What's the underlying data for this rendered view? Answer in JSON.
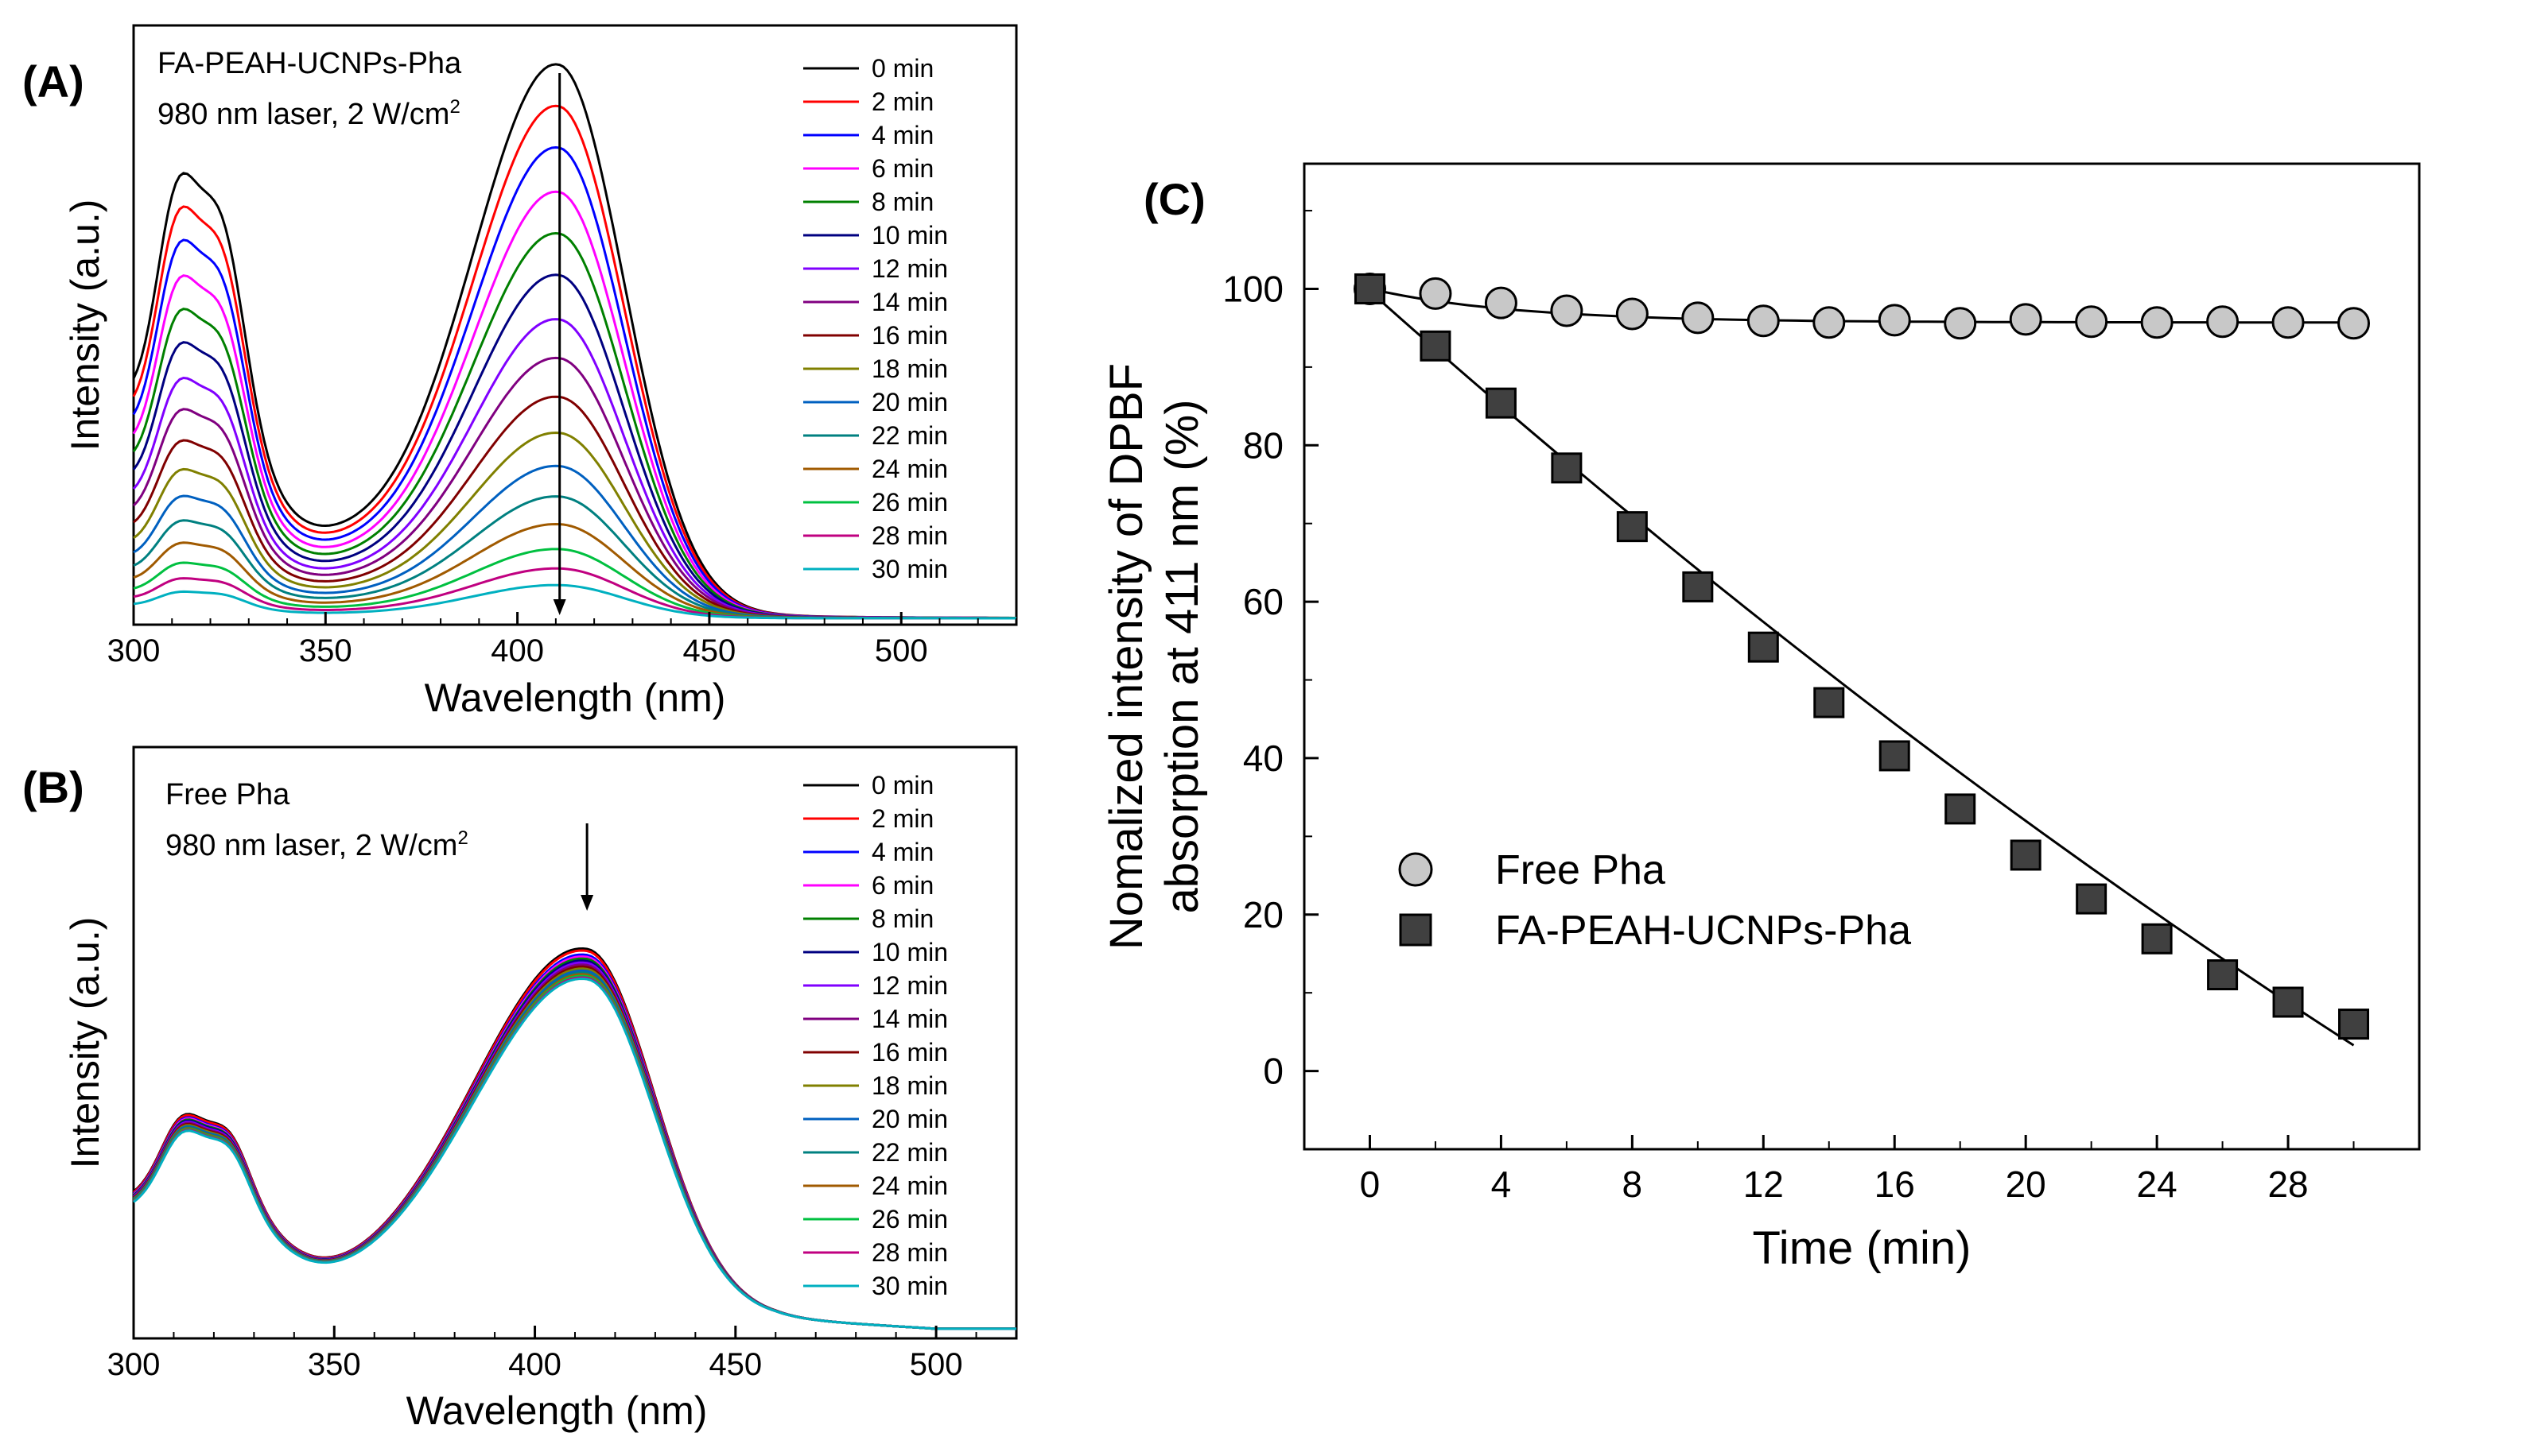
{
  "chart_data": [
    {
      "panel": "(A)",
      "type": "line",
      "title": "FA-PEAH-UCNPs-Pha",
      "condition": "980 nm laser, 2 W/cm",
      "condition_sup": "2",
      "xlabel": "Wavelength (nm)",
      "ylabel": "Intensity (a.u.)",
      "xlim": [
        300,
        530
      ],
      "xticks": [
        "300",
        "350",
        "400",
        "450",
        "500"
      ],
      "ylim": [
        0,
        1
      ],
      "peak_nm": 411,
      "legend": [
        "0 min",
        "2 min",
        "4 min",
        "6 min",
        "8 min",
        "10 min",
        "12 min",
        "14 min",
        "16 min",
        "18 min",
        "20 min",
        "22 min",
        "24 min",
        "26 min",
        "28 min",
        "30 min"
      ],
      "colors": [
        "#000000",
        "#ff0000",
        "#0000ff",
        "#ff00ff",
        "#008000",
        "#000080",
        "#8000ff",
        "#800080",
        "#800000",
        "#808000",
        "#0060c0",
        "#008080",
        "#a05a00",
        "#00c040",
        "#c00080",
        "#00b0c0"
      ],
      "peak_values": [
        1.0,
        0.925,
        0.85,
        0.77,
        0.695,
        0.62,
        0.54,
        0.47,
        0.4,
        0.335,
        0.275,
        0.22,
        0.17,
        0.125,
        0.09,
        0.06
      ]
    },
    {
      "panel": "(B)",
      "type": "line",
      "title": "Free Pha",
      "condition": "980 nm laser, 2 W/cm",
      "condition_sup": "2",
      "xlabel": "Wavelength (nm)",
      "ylabel": "Intensity (a.u.)",
      "xlim": [
        300,
        520
      ],
      "xticks": [
        "300",
        "350",
        "400",
        "450",
        "500"
      ],
      "ylim": [
        0,
        1
      ],
      "peak_nm": 413,
      "legend": [
        "0 min",
        "2 min",
        "4 min",
        "6 min",
        "8 min",
        "10 min",
        "12 min",
        "14 min",
        "16 min",
        "18 min",
        "20 min",
        "22 min",
        "24 min",
        "26 min",
        "28 min",
        "30 min"
      ],
      "colors": [
        "#000000",
        "#ff0000",
        "#0000ff",
        "#ff00ff",
        "#008000",
        "#000080",
        "#8000ff",
        "#800080",
        "#800000",
        "#808000",
        "#0060c0",
        "#008080",
        "#a05a00",
        "#00c040",
        "#c00080",
        "#00b0c0"
      ],
      "peak_values": [
        0.92,
        0.915,
        0.905,
        0.9,
        0.895,
        0.89,
        0.885,
        0.88,
        0.875,
        0.87,
        0.865,
        0.86,
        0.856,
        0.852,
        0.848,
        0.845
      ]
    },
    {
      "panel": "(C)",
      "type": "scatter",
      "xlabel": "Time (min)",
      "ylabel_line1": "Nomalized intensity of DPBF",
      "ylabel_line2": "absorption at 411 nm (%)",
      "xlim": [
        -2,
        32
      ],
      "ylim": [
        -10,
        116
      ],
      "xticks": [
        0,
        4,
        8,
        12,
        16,
        20,
        24,
        28
      ],
      "yticks": [
        0,
        20,
        40,
        60,
        80,
        100
      ],
      "x": [
        0,
        2,
        4,
        6,
        8,
        10,
        12,
        14,
        16,
        18,
        20,
        22,
        24,
        26,
        28,
        30
      ],
      "series": [
        {
          "name": "Free Pha",
          "marker": "circle",
          "color": "#c8c8c8",
          "values": [
            100,
            99.4,
            98.2,
            97.2,
            96.8,
            96.3,
            95.9,
            95.7,
            96.0,
            95.6,
            96.1,
            95.8,
            95.7,
            95.8,
            95.7,
            95.6
          ]
        },
        {
          "name": "FA-PEAH-UCNPs-Pha",
          "marker": "square",
          "color": "#404040",
          "values": [
            100,
            92.7,
            85.4,
            77.1,
            69.6,
            61.9,
            54.2,
            47.1,
            40.3,
            33.5,
            27.6,
            22.0,
            16.9,
            12.3,
            8.8,
            6.0
          ]
        }
      ]
    }
  ]
}
